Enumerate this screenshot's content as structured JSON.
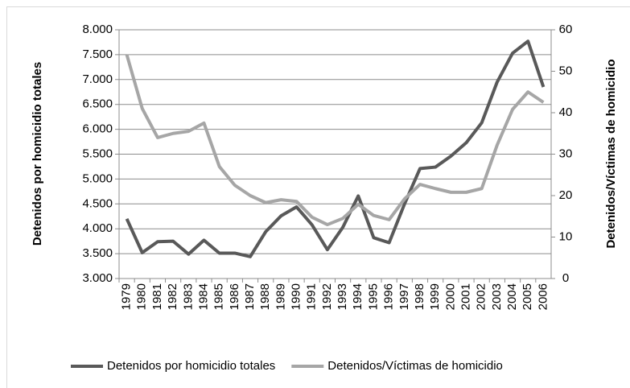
{
  "chart_data": {
    "type": "line",
    "y_label": "Detenidos por homicidio  totales",
    "y2_label": "Detenidos/Víctimas de homicidio",
    "categories": [
      "1979",
      "1980",
      "1981",
      "1982",
      "1983",
      "1984",
      "1985",
      "1986",
      "1987",
      "1988",
      "1989",
      "1990",
      "1991",
      "1992",
      "1993",
      "1994",
      "1995",
      "1996",
      "1997",
      "1998",
      "1999",
      "2000",
      "2001",
      "2002",
      "2003",
      "2004",
      "2005",
      "2006"
    ],
    "series": [
      {
        "name": "Detenidos por homicidio totales",
        "color": "#595959",
        "values": [
          4200,
          3520,
          3740,
          3750,
          3490,
          3770,
          3510,
          3510,
          3440,
          3940,
          4260,
          4440,
          4080,
          3580,
          4030,
          4660,
          3820,
          3720,
          4500,
          5210,
          5240,
          5460,
          5730,
          6130,
          6950,
          7530,
          7770,
          6850
        ]
      },
      {
        "name": "Detenidos/Víctimas de homicidio",
        "color": "#a6a6a6",
        "axis": "y2",
        "values": [
          54,
          41,
          34,
          35,
          35.5,
          37.5,
          27,
          22.5,
          20,
          18.3,
          19,
          18.6,
          14.8,
          13,
          14.5,
          17.9,
          15.2,
          14.2,
          19.2,
          22.7,
          21.7,
          20.8,
          20.8,
          21.7,
          32.2,
          40.8,
          45,
          42.5
        ]
      }
    ],
    "ylim": [
      3000,
      8000
    ],
    "yticks": [
      {
        "value": 3000,
        "label": "3.000"
      },
      {
        "value": 3500,
        "label": "3.500"
      },
      {
        "value": 4000,
        "label": "4.000"
      },
      {
        "value": 4500,
        "label": "4.500"
      },
      {
        "value": 5000,
        "label": "5.000"
      },
      {
        "value": 5500,
        "label": "5.500"
      },
      {
        "value": 6000,
        "label": "6.000"
      },
      {
        "value": 6500,
        "label": "6.500"
      },
      {
        "value": 7000,
        "label": "7.000"
      },
      {
        "value": 7500,
        "label": "7.500"
      },
      {
        "value": 8000,
        "label": "8.000"
      }
    ],
    "y2lim": [
      0,
      60
    ],
    "y2ticks": [
      0,
      10,
      20,
      30,
      40,
      50,
      60
    ],
    "grid": true,
    "legend": "bottom"
  }
}
